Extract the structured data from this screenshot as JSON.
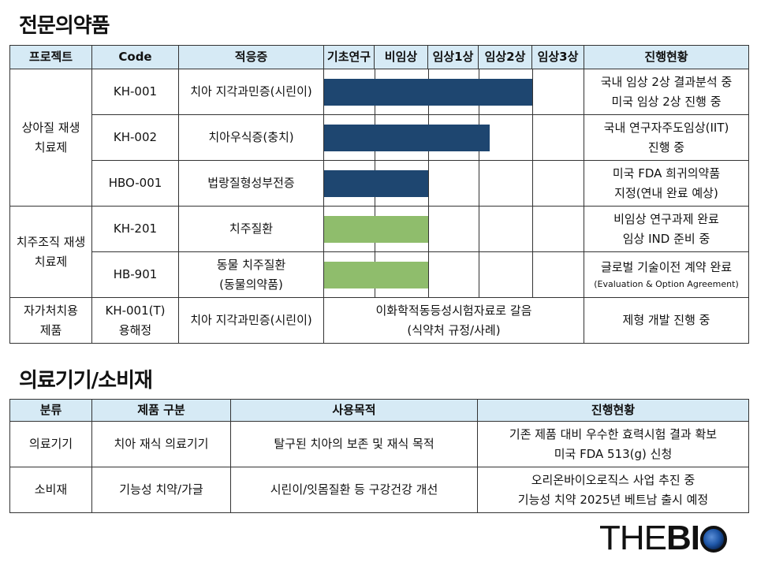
{
  "section1": {
    "title": "전문의약품",
    "headers": [
      "프로젝트",
      "Code",
      "적응증",
      "기초연구",
      "비임상",
      "임상1상",
      "임상2상",
      "임상3상",
      "진행현황"
    ],
    "groups": [
      {
        "label": [
          "상아질 재생",
          "치료제"
        ]
      },
      {
        "label": [
          "치주조직 재생",
          "치료제"
        ]
      },
      {
        "label": [
          "자가처치용",
          "제품"
        ]
      }
    ],
    "rows": [
      {
        "code": [
          "KH-001"
        ],
        "indication": [
          "치아 지각과민증(시린이)"
        ],
        "stage_reached": "임상2상",
        "bar_color": "#1e4670",
        "status": [
          "국내 임상 2상 결과분석 중",
          "미국 임상 2상 진행 중"
        ]
      },
      {
        "code": [
          "KH-002"
        ],
        "indication": [
          "치아우식증(충치)"
        ],
        "stage_reached": "임상2상(진행중)",
        "bar_color": "#1e4670",
        "status": [
          "국내 연구자주도임상(IIT)",
          "진행 중"
        ]
      },
      {
        "code": [
          "HBO-001"
        ],
        "indication": [
          "법랑질형성부전증"
        ],
        "stage_reached": "비임상",
        "bar_color": "#1e4670",
        "status": [
          "미국 FDA 희귀의약품",
          "지정(연내 완료 예상)"
        ]
      },
      {
        "code": [
          "KH-201"
        ],
        "indication": [
          "치주질환"
        ],
        "stage_reached": "비임상",
        "bar_color": "#8fbd6c",
        "status": [
          "비임상 연구과제 완료",
          "임상 IND 준비 중"
        ]
      },
      {
        "code": [
          "HB-901"
        ],
        "indication": [
          "동물 치주질환",
          "(동물의약품)"
        ],
        "stage_reached": "비임상",
        "bar_color": "#8fbd6c",
        "status": [
          "글로벌 기술이전 계약 완료",
          "(Evaluation & Option Agreement)"
        ]
      },
      {
        "code": [
          "KH-001(T)",
          "용해정"
        ],
        "indication": [
          "치아 지각과민증(시린이)"
        ],
        "progress_text": [
          "이화학적동등성시험자료로 갈음",
          "(식약처 규정/사례)"
        ],
        "status": [
          "제형 개발 진행 중"
        ]
      }
    ]
  },
  "section2": {
    "title": "의료기기/소비재",
    "headers": [
      "분류",
      "제품 구분",
      "사용목적",
      "진행현황"
    ],
    "rows": [
      {
        "category": "의료기기",
        "product": "치아 재식 의료기기",
        "purpose": "탈구된 치아의 보존 및 재식 목적",
        "status": [
          "기존 제품 대비 우수한 효력시험 결과 확보",
          "미국 FDA 513(g) 신청"
        ]
      },
      {
        "category": "소비재",
        "product": "기능성 치약/가글",
        "purpose": "시린이/잇몸질환 등 구강건강 개선",
        "status": [
          "오리온바이오로직스 사업 추진 중",
          "기능성 치약 2025년 베트남 출시 예정"
        ]
      }
    ]
  },
  "logo": {
    "text_a": "THE",
    "text_b": "BI"
  },
  "colors": {
    "header_bg": "#d6eaf5",
    "navy_bar": "#1e4670",
    "green_bar": "#8fbd6c",
    "logo_dot": "#1f57a8"
  }
}
